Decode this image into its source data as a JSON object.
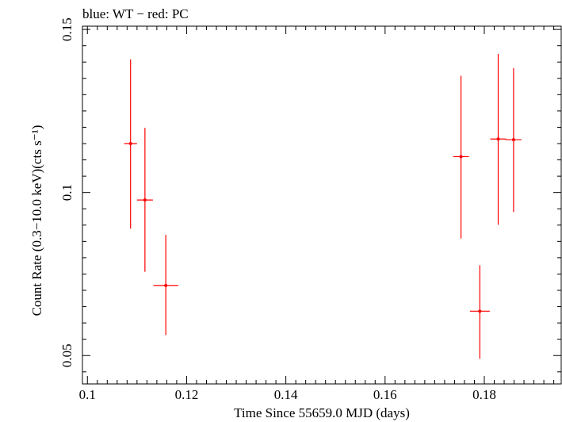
{
  "chart_data": {
    "type": "scatter",
    "title": "blue: WT − red: PC",
    "xlabel": "Time Since 55659.0 MJD (days)",
    "ylabel": "Count Rate (0.3−10.0 keV)(cts s⁻¹)",
    "xlim": [
      0.099,
      0.1955
    ],
    "ylim": [
      0.0413,
      0.151
    ],
    "x_ticks": [
      {
        "value": 0.1,
        "label": "0.1"
      },
      {
        "value": 0.12,
        "label": "0.12"
      },
      {
        "value": 0.14,
        "label": "0.14"
      },
      {
        "value": 0.16,
        "label": "0.16"
      },
      {
        "value": 0.18,
        "label": "0.18"
      }
    ],
    "y_ticks": [
      {
        "value": 0.05,
        "label": "0.05"
      },
      {
        "value": 0.1,
        "label": "0.1"
      },
      {
        "value": 0.15,
        "label": "0.15"
      }
    ],
    "series": [
      {
        "name": "WT",
        "color": "#0000ff",
        "points": []
      },
      {
        "name": "PC",
        "color": "#ff0000",
        "points": [
          {
            "x": 0.1087,
            "xerr_lo": 0.0013,
            "xerr_hi": 0.0013,
            "y": 0.115,
            "y_lo": 0.0889,
            "y_hi": 0.1408
          },
          {
            "x": 0.1116,
            "xerr_lo": 0.0016,
            "xerr_hi": 0.0016,
            "y": 0.0977,
            "y_lo": 0.0757,
            "y_hi": 0.1198
          },
          {
            "x": 0.1158,
            "xerr_lo": 0.0025,
            "xerr_hi": 0.0025,
            "y": 0.0715,
            "y_lo": 0.0563,
            "y_hi": 0.087
          },
          {
            "x": 0.1753,
            "xerr_lo": 0.0016,
            "xerr_hi": 0.0016,
            "y": 0.111,
            "y_lo": 0.0859,
            "y_hi": 0.1358
          },
          {
            "x": 0.1791,
            "xerr_lo": 0.002,
            "xerr_hi": 0.002,
            "y": 0.0636,
            "y_lo": 0.049,
            "y_hi": 0.0777
          },
          {
            "x": 0.1828,
            "xerr_lo": 0.0016,
            "xerr_hi": 0.0016,
            "y": 0.1164,
            "y_lo": 0.0901,
            "y_hi": 0.1425
          },
          {
            "x": 0.1859,
            "xerr_lo": 0.0016,
            "xerr_hi": 0.0016,
            "y": 0.1162,
            "y_lo": 0.094,
            "y_hi": 0.1381
          }
        ]
      }
    ],
    "grid": false,
    "legend": "none"
  }
}
